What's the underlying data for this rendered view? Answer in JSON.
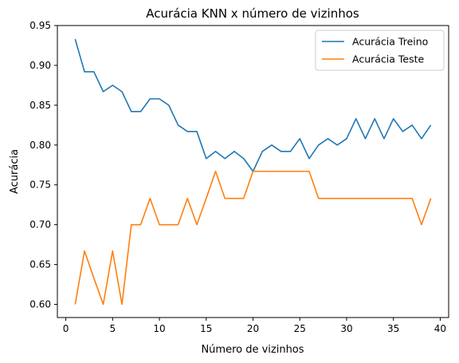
{
  "chart_data": {
    "type": "line",
    "title": "Acurácia KNN x número de vizinhos",
    "xlabel": "Número de vizinhos",
    "ylabel": "Acurácia",
    "xlim": [
      -0.9,
      40.9
    ],
    "ylim": [
      0.5835,
      0.95
    ],
    "xticks": [
      0,
      5,
      10,
      15,
      20,
      25,
      30,
      35,
      40
    ],
    "yticks": [
      0.6,
      0.65,
      0.7,
      0.75,
      0.8,
      0.85,
      0.9,
      0.95
    ],
    "ytick_labels": [
      "0.60",
      "0.65",
      "0.70",
      "0.75",
      "0.80",
      "0.85",
      "0.90",
      "0.95"
    ],
    "legend_position": "top-right",
    "x": [
      1,
      2,
      3,
      4,
      5,
      6,
      7,
      8,
      9,
      10,
      11,
      12,
      13,
      14,
      15,
      16,
      17,
      18,
      19,
      20,
      21,
      22,
      23,
      24,
      25,
      26,
      27,
      28,
      29,
      30,
      31,
      32,
      33,
      34,
      35,
      36,
      37,
      38,
      39
    ],
    "series": [
      {
        "name": "Acurácia Treino",
        "color": "#1f77b4",
        "values": [
          0.933,
          0.892,
          0.892,
          0.867,
          0.875,
          0.867,
          0.842,
          0.842,
          0.858,
          0.858,
          0.85,
          0.825,
          0.817,
          0.817,
          0.783,
          0.792,
          0.783,
          0.792,
          0.783,
          0.767,
          0.792,
          0.8,
          0.792,
          0.792,
          0.808,
          0.783,
          0.8,
          0.808,
          0.8,
          0.808,
          0.833,
          0.808,
          0.833,
          0.808,
          0.833,
          0.817,
          0.825,
          0.808,
          0.825
        ]
      },
      {
        "name": "Acurácia Teste",
        "color": "#ff7f0e",
        "values": [
          0.6,
          0.667,
          0.633,
          0.6,
          0.667,
          0.6,
          0.7,
          0.7,
          0.733,
          0.7,
          0.7,
          0.7,
          0.733,
          0.7,
          0.733,
          0.767,
          0.733,
          0.733,
          0.733,
          0.767,
          0.767,
          0.767,
          0.767,
          0.767,
          0.767,
          0.767,
          0.733,
          0.733,
          0.733,
          0.733,
          0.733,
          0.733,
          0.733,
          0.733,
          0.733,
          0.733,
          0.733,
          0.7,
          0.733
        ]
      }
    ]
  }
}
